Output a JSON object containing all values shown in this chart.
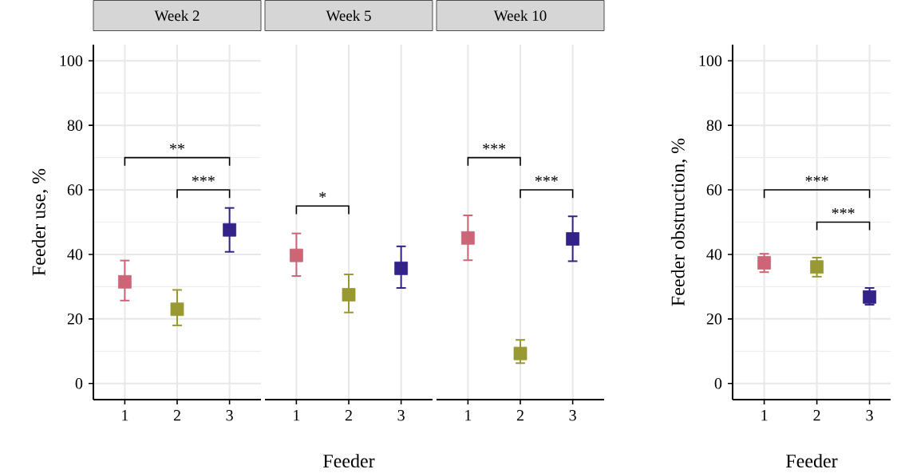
{
  "chart_data": [
    {
      "type": "scatter",
      "title": "Week 2",
      "ylabel": "Feeder use, %",
      "categories": [
        "1",
        "2",
        "3"
      ],
      "values": [
        31.5,
        23.0,
        47.6
      ],
      "errors": [
        [
          25.7,
          38.1
        ],
        [
          18.0,
          29.0
        ],
        [
          40.8,
          54.4
        ]
      ],
      "colors": [
        "#cc6677",
        "#999933",
        "#332288"
      ],
      "ylim": [
        -5,
        105
      ],
      "yticks": [
        0,
        20,
        40,
        60,
        80,
        100
      ],
      "grid": true,
      "marker": "square",
      "annotations": [
        "**",
        "***"
      ]
    },
    {
      "type": "scatter",
      "title": "Week 5",
      "xlabel": "Feeder",
      "categories": [
        "1",
        "2",
        "3"
      ],
      "values": [
        39.7,
        27.5,
        35.7
      ],
      "errors": [
        [
          33.3,
          46.5
        ],
        [
          22.0,
          33.8
        ],
        [
          29.6,
          42.5
        ]
      ],
      "colors": [
        "#cc6677",
        "#999933",
        "#332288"
      ],
      "ylim": [
        -5,
        105
      ],
      "yticks": [
        0,
        20,
        40,
        60,
        80,
        100
      ],
      "grid": true,
      "marker": "square",
      "tick_labels": "x",
      "annotations": [
        "*"
      ]
    },
    {
      "type": "scatter",
      "title": "Week 10",
      "categories": [
        "1",
        "2",
        "3"
      ],
      "values": [
        45.1,
        9.3,
        44.8
      ],
      "errors": [
        [
          38.2,
          52.1
        ],
        [
          6.3,
          13.5
        ],
        [
          37.9,
          51.8
        ]
      ],
      "colors": [
        "#cc6677",
        "#999933",
        "#332288"
      ],
      "ylim": [
        -5,
        105
      ],
      "yticks": [
        0,
        20,
        40,
        60,
        80,
        100
      ],
      "grid": true,
      "marker": "square",
      "tick_labels": "x",
      "annotations": [
        "***",
        "***"
      ]
    },
    {
      "type": "scatter",
      "xlabel": "Feeder",
      "ylabel": "Feeder obstruction, %",
      "categories": [
        "1",
        "2",
        "3"
      ],
      "values": [
        37.4,
        36.1,
        26.8
      ],
      "errors": [
        [
          34.5,
          40.2
        ],
        [
          33.1,
          39.0
        ],
        [
          24.4,
          29.6
        ]
      ],
      "colors": [
        "#cc6677",
        "#999933",
        "#332288"
      ],
      "ylim": [
        -5,
        105
      ],
      "yticks": [
        0,
        20,
        40,
        60,
        80,
        100
      ],
      "grid": true,
      "marker": "square",
      "annotations": [
        "***",
        "***"
      ]
    }
  ]
}
